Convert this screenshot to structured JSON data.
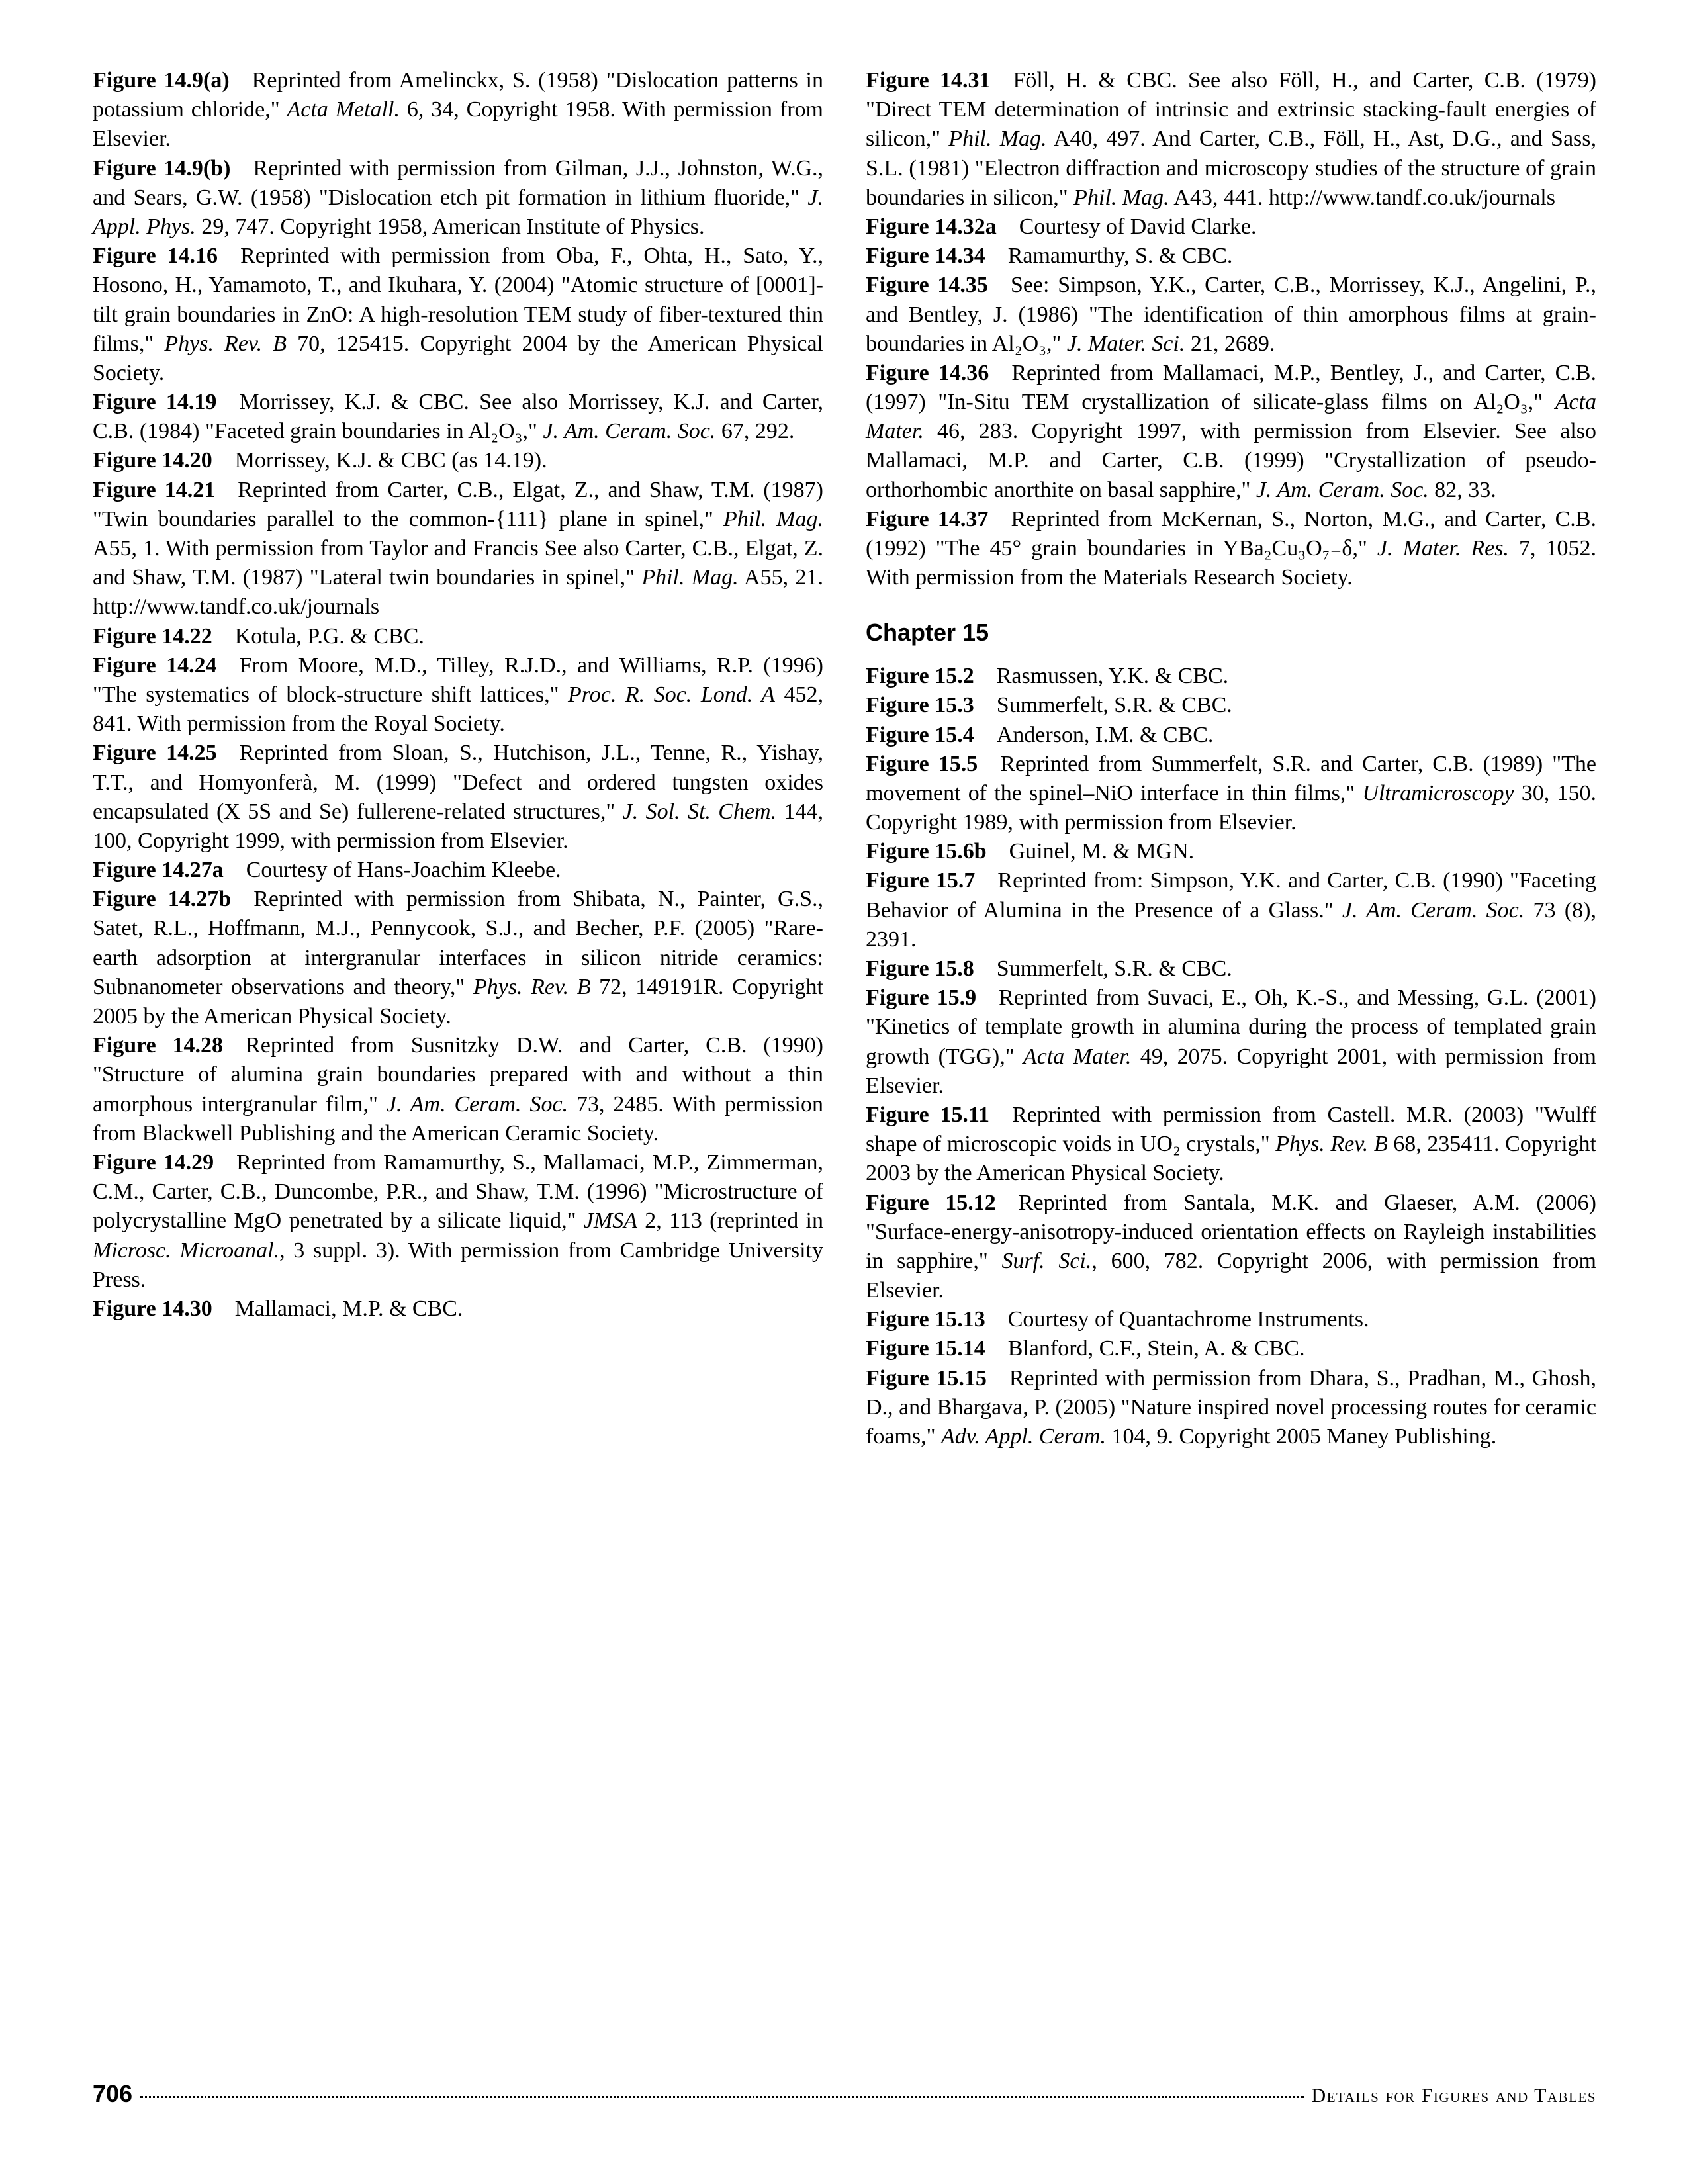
{
  "page": {
    "number": "706",
    "sectionTitle": "Details for Figures and Tables"
  },
  "chapter15Heading": "Chapter 15",
  "entries": [
    {
      "label": "Figure 14.9(a)",
      "text": "Reprinted from Amelinckx, S. (1958) \"Dislocation patterns in potassium chloride,\" ",
      "i1": "Acta Metall.",
      "text2": " 6, 34, Copyright 1958. With permission from Elsevier."
    },
    {
      "label": "Figure 14.9(b)",
      "text": "Reprinted with permission from Gilman, J.J., Johnston, W.G., and Sears, G.W. (1958) \"Dislocation etch pit formation in lithium fluoride,\" ",
      "i1": "J. Appl. Phys.",
      "text2": " 29, 747. Copyright 1958, American Institute of Physics."
    },
    {
      "label": "Figure 14.16",
      "text": "Reprinted with permission from Oba, F., Ohta, H., Sato, Y., Hosono, H., Yamamoto, T., and Ikuhara, Y. (2004) \"Atomic structure of [0001]-tilt grain boundaries in ZnO: A high-resolution TEM study of fiber-textured thin films,\" ",
      "i1": "Phys. Rev. B",
      "text2": " 70, 125415. Copyright 2004 by the American Physical Society."
    },
    {
      "label": "Figure 14.19",
      "text": "Morrissey, K.J. & CBC. See also Morrissey, K.J. and Carter, C.B. (1984) \"Faceted grain boundaries in Al₂O₃,\" ",
      "i1": "J. Am. Ceram. Soc.",
      "text2": " 67, 292."
    },
    {
      "label": "Figure 14.20",
      "text": "Morrissey, K.J. & CBC (as 14.19)."
    },
    {
      "label": "Figure 14.21",
      "text": "Reprinted from Carter, C.B., Elgat, Z., and Shaw, T.M. (1987) \"Twin boundaries parallel to the common-{111} plane in spinel,\" ",
      "i1": "Phil. Mag.",
      "text2": " A55, 1. With permission from Taylor and Francis See also Carter, C.B., Elgat, Z. and Shaw, T.M. (1987) \"Lateral twin boundaries in spinel,\" ",
      "i2": "Phil. Mag.",
      "text3": " A55, 21. http://www.tandf.co.uk/journals"
    },
    {
      "label": "Figure 14.22",
      "text": "Kotula, P.G. & CBC."
    },
    {
      "label": "Figure 14.24",
      "text": "From Moore, M.D., Tilley, R.J.D., and Williams, R.P. (1996) \"The systematics of block-structure shift lattices,\" ",
      "i1": "Proc. R. Soc. Lond. A",
      "text2": " 452, 841. With permission from the Royal Society."
    },
    {
      "label": "Figure 14.25",
      "text": "Reprinted from Sloan, S., Hutchison, J.L., Tenne, R., Yishay, T.T., and Homyonferà, M. (1999) \"Defect and ordered tungsten oxides encapsulated (X 5S and Se) fullerene-related structures,\" ",
      "i1": "J. Sol. St. Chem.",
      "text2": " 144, 100, Copyright 1999, with permission from Elsevier."
    },
    {
      "label": "Figure 14.27a",
      "text": "Courtesy of Hans-Joachim Kleebe."
    },
    {
      "label": "Figure 14.27b",
      "text": "Reprinted with permission from Shibata, N., Painter, G.S., Satet, R.L., Hoffmann, M.J., Pennycook, S.J., and Becher, P.F. (2005) \"Rare-earth adsorption at intergranular interfaces in silicon nitride ceramics: Subnanometer observations and theory,\" ",
      "i1": "Phys. Rev. B",
      "text2": " 72, 149191R. Copyright 2005 by the American Physical Society."
    },
    {
      "label": "Figure 14.28",
      "text": "Reprinted from Susnitzky D.W. and Carter, C.B. (1990) \"Structure of alumina grain boundaries prepared with and without a thin amorphous intergranular film,\" ",
      "i1": "J. Am. Ceram. Soc.",
      "text2": " 73, 2485. With permission from Blackwell Publishing and the American Ceramic Society."
    },
    {
      "label": "Figure 14.29",
      "text": "Reprinted from Ramamurthy, S., Mallamaci, M.P., Zimmerman, C.M., Carter, C.B., Duncombe, P.R., and Shaw, T.M. (1996) \"Microstructure of polycrystalline MgO penetrated by a silicate liquid,\" ",
      "i1": "JMSA",
      "text2": " 2, 113 (reprinted in ",
      "i2": "Microsc. Microanal.",
      "text3": ", 3 suppl. 3). With permission from Cambridge University Press."
    },
    {
      "label": "Figure 14.30",
      "text": "Mallamaci, M.P. & CBC."
    },
    {
      "label": "Figure 14.31",
      "text": "Föll, H. & CBC. See also Föll, H., and Carter, C.B. (1979) \"Direct TEM determination of intrinsic and extrinsic stacking-fault energies of silicon,\" ",
      "i1": "Phil. Mag.",
      "text2": " A40, 497. And Carter, C.B., Föll, H., Ast, D.G., and Sass, S.L. (1981) \"Electron diffraction and microscopy studies of the structure of grain boundaries in silicon,\" ",
      "i2": "Phil. Mag.",
      "text3": " A43, 441. http://www.tandf.co.uk/journals"
    },
    {
      "label": "Figure 14.32a",
      "text": "Courtesy of David Clarke."
    },
    {
      "label": "Figure 14.34",
      "text": "Ramamurthy, S. & CBC."
    },
    {
      "label": "Figure 14.35",
      "text": "See: Simpson, Y.K., Carter, C.B., Morrissey, K.J., Angelini, P., and Bentley, J. (1986) \"The identification of thin amorphous films at grain-boundaries in Al₂O₃,\" ",
      "i1": "J. Mater. Sci.",
      "text2": " 21, 2689."
    },
    {
      "label": "Figure 14.36",
      "text": "Reprinted from Mallamaci, M.P., Bentley, J., and Carter, C.B. (1997) \"In-Situ TEM crystallization of silicate-glass films on Al₂O₃,\" ",
      "i1": "Acta Mater.",
      "text2": " 46, 283. Copyright 1997, with permission from Elsevier. See also Mallamaci, M.P. and Carter, C.B. (1999) \"Crystallization of pseudo-orthorhombic anorthite on basal sapphire,\" ",
      "i2": "J. Am. Ceram. Soc.",
      "text3": " 82, 33."
    },
    {
      "label": "Figure 14.37",
      "text": "Reprinted from McKernan, S., Norton, M.G., and Carter, C.B. (1992) \"The 45° grain boundaries in YBa₂Cu₃O₇₋δ,\" ",
      "i1": "J. Mater. Res.",
      "text2": " 7, 1052. With permission from the Materials Research Society."
    }
  ],
  "entriesCh15": [
    {
      "label": "Figure 15.2",
      "text": "Rasmussen, Y.K. & CBC."
    },
    {
      "label": "Figure 15.3",
      "text": "Summerfelt, S.R. & CBC."
    },
    {
      "label": "Figure 15.4",
      "text": "Anderson, I.M. & CBC."
    },
    {
      "label": "Figure 15.5",
      "text": "Reprinted from Summerfelt, S.R. and Carter, C.B. (1989) \"The movement of the spinel–NiO interface in thin films,\" ",
      "i1": "Ultramicroscopy",
      "text2": " 30, 150. Copyright 1989, with permission from Elsevier."
    },
    {
      "label": "Figure 15.6b",
      "text": "Guinel, M. & MGN."
    },
    {
      "label": "Figure 15.7",
      "text": "Reprinted from: Simpson, Y.K. and Carter, C.B. (1990) \"Faceting Behavior of Alumina in the Presence of a Glass.\" ",
      "i1": "J. Am. Ceram. Soc.",
      "text2": " 73 (8), 2391."
    },
    {
      "label": "Figure 15.8",
      "text": "Summerfelt, S.R. & CBC."
    },
    {
      "label": "Figure 15.9",
      "text": "Reprinted from Suvaci, E., Oh, K.-S., and Messing, G.L. (2001) \"Kinetics of template growth in alumina during the process of templated grain growth (TGG),\" ",
      "i1": "Acta Mater.",
      "text2": " 49, 2075. Copyright 2001, with permission from Elsevier."
    },
    {
      "label": "Figure 15.11",
      "text": "Reprinted with permission from Castell. M.R. (2003) \"Wulff shape of microscopic voids in UO₂ crystals,\" ",
      "i1": "Phys. Rev. B",
      "text2": " 68, 235411. Copyright 2003 by the American Physical Society."
    },
    {
      "label": "Figure 15.12",
      "text": "Reprinted from Santala, M.K. and Glaeser, A.M. (2006) \"Surface-energy-anisotropy-induced orientation effects on Rayleigh instabilities in sapphire,\" ",
      "i1": "Surf. Sci.",
      "text2": ", 600, 782. Copyright 2006, with permission from Elsevier."
    },
    {
      "label": "Figure 15.13",
      "text": "Courtesy of Quantachrome Instruments."
    },
    {
      "label": "Figure 15.14",
      "text": "Blanford, C.F., Stein, A. & CBC."
    },
    {
      "label": "Figure 15.15",
      "text": "Reprinted with permission from Dhara, S., Pradhan, M., Ghosh, D., and Bhargava, P. (2005) \"Nature inspired novel processing routes for ceramic foams,\" ",
      "i1": "Adv. Appl. Ceram.",
      "text2": " 104, 9. Copyright 2005 Maney Publishing."
    }
  ]
}
